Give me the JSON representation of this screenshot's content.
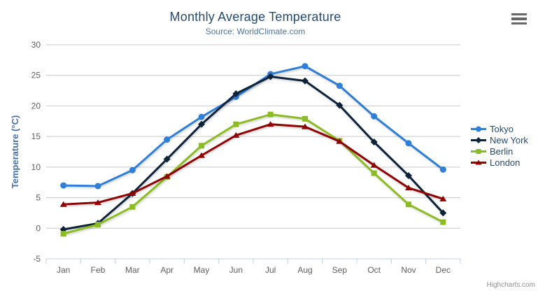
{
  "header": {
    "title": "Monthly Average Temperature",
    "subtitle": "Source: WorldClimate.com"
  },
  "credits": {
    "label": "Highcharts.com"
  },
  "export_menu": {
    "icon": "hamburger-icon"
  },
  "theme": {
    "title_color": "#274b6d",
    "subtitle_color": "#4d759e",
    "axis_label_color": "#606060",
    "axis_title_color": "#4572a7",
    "grid_color": "#c9c9c9",
    "axis_line_color": "#c0d0e0",
    "legend_text_color": "#274b6d",
    "credits_color": "#909090",
    "menu_icon_color": "#666666"
  },
  "chart_data": {
    "type": "line",
    "title": "Monthly Average Temperature",
    "subtitle": "Source: WorldClimate.com",
    "xlabel": "",
    "ylabel": "Temperature (°C)",
    "ylim": [
      -5,
      30
    ],
    "y_ticks": [
      -5,
      0,
      5,
      10,
      15,
      20,
      25,
      30
    ],
    "grid": true,
    "legend_position": "right",
    "categories": [
      "Jan",
      "Feb",
      "Mar",
      "Apr",
      "May",
      "Jun",
      "Jul",
      "Aug",
      "Sep",
      "Oct",
      "Nov",
      "Dec"
    ],
    "series": [
      {
        "name": "Tokyo",
        "color": "#2f7ed8",
        "marker": "circle",
        "values": [
          7.0,
          6.9,
          9.5,
          14.5,
          18.2,
          21.5,
          25.2,
          26.5,
          23.3,
          18.3,
          13.9,
          9.6
        ]
      },
      {
        "name": "New York",
        "color": "#0d233a",
        "marker": "diamond",
        "values": [
          -0.2,
          0.8,
          5.7,
          11.3,
          17.0,
          22.0,
          24.8,
          24.1,
          20.1,
          14.1,
          8.6,
          2.5
        ]
      },
      {
        "name": "Berlin",
        "color": "#8bbc21",
        "marker": "square",
        "values": [
          -0.9,
          0.6,
          3.5,
          8.4,
          13.5,
          17.0,
          18.6,
          17.9,
          14.3,
          9.0,
          3.9,
          1.0
        ]
      },
      {
        "name": "London",
        "color": "#910000",
        "marker": "triangle",
        "values": [
          3.9,
          4.2,
          5.7,
          8.5,
          11.9,
          15.2,
          17.0,
          16.6,
          14.2,
          10.3,
          6.6,
          4.8
        ]
      }
    ]
  }
}
